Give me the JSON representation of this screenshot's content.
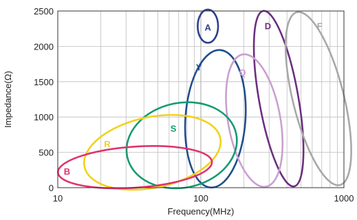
{
  "chart_data": {
    "type": "scatter",
    "xlabel": "Frequency(MHz)",
    "ylabel": "Impedance(Ω)",
    "x_scale": "log",
    "xlim": [
      10,
      1000
    ],
    "ylim": [
      0,
      2500
    ],
    "x_ticks": [
      "10",
      "100",
      "1000"
    ],
    "y_ticks": [
      "0",
      "500",
      "1000",
      "1500",
      "2000",
      "2500"
    ],
    "grid": true,
    "regions": [
      {
        "label": "A",
        "color": "#2b3f8f",
        "x_range": [
          95,
          132
        ],
        "y_range": [
          2050,
          2520
        ]
      },
      {
        "label": "Y",
        "color": "#1f4e8c",
        "x_range": [
          78,
          205
        ],
        "y_range": [
          0,
          1950
        ]
      },
      {
        "label": "D",
        "color": "#6b2f7f",
        "x_range": [
          255,
          480
        ],
        "y_range": [
          0,
          2520
        ]
      },
      {
        "label": "F",
        "color": "#a8a8a8",
        "x_range": [
          440,
          1000
        ],
        "y_range": [
          0,
          2520
        ]
      },
      {
        "label": "Q",
        "color": "#c9a0d0",
        "x_range": [
          155,
          360
        ],
        "y_range": [
          0,
          1900
        ]
      },
      {
        "label": "S",
        "color": "#129b72",
        "x_range": [
          30,
          180
        ],
        "y_range": [
          0,
          1200
        ]
      },
      {
        "label": "R",
        "color": "#f1d21c",
        "x_range": [
          15,
          140
        ],
        "y_range": [
          0,
          1000
        ]
      },
      {
        "label": "B",
        "color": "#e0336e",
        "x_range": [
          10,
          120
        ],
        "y_range": [
          0,
          580
        ]
      }
    ]
  }
}
